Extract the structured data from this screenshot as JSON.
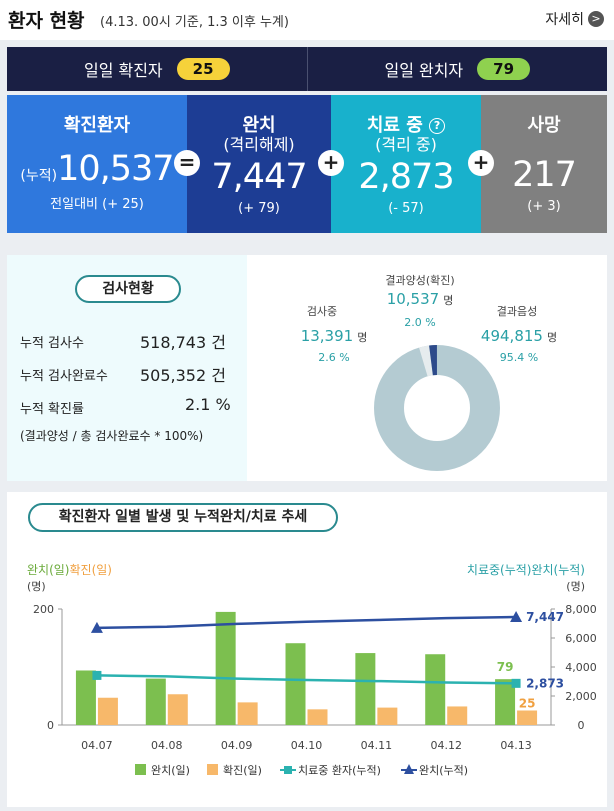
{
  "header": {
    "title": "환자 현황",
    "subtitle": "(4.13. 00시 기준, 1.3 이후 누계)",
    "more_label": "자세히",
    "more_arrow": ">"
  },
  "daily": {
    "confirmed_label": "일일 확진자",
    "confirmed_value": "25",
    "recovered_label": "일일 완치자",
    "recovered_value": "79"
  },
  "summary": {
    "confirmed": {
      "label": "확진환자",
      "prefix": "(누적)",
      "value": "10,537",
      "delta": "전일대비 (+ 25)"
    },
    "released": {
      "label": "완치",
      "label2": "(격리해제)",
      "value": "7,447",
      "delta": "(+ 79)"
    },
    "treatment": {
      "label": "치료 중",
      "label2": "(격리 중)",
      "value": "2,873",
      "delta": "(- 57)",
      "help": "?"
    },
    "deaths": {
      "label": "사망",
      "value": "217",
      "delta": "(+ 3)"
    },
    "op_equals": "=",
    "op_plus": "+",
    "colors": {
      "confirmed": "#2f78dd",
      "released": "#1d3d94",
      "treatment": "#18b1cc",
      "deaths": "#808080"
    }
  },
  "tests": {
    "title": "검사현황",
    "rows": [
      {
        "label": "누적 검사수",
        "value": "518,743 건"
      },
      {
        "label": "누적 검사완료수",
        "value": "505,352 건"
      },
      {
        "label": "누적 확진률",
        "value": "2.1 %"
      }
    ],
    "note": "(결과양성 / 총 검사완료수 * 100%)",
    "donut": {
      "positive": {
        "label": "결과양성(확진)",
        "value": "10,537",
        "unit": "명",
        "pct": "2.0 %",
        "fraction": 0.02
      },
      "testing": {
        "label": "검사중",
        "value": "13,391",
        "unit": "명",
        "pct": "2.6 %",
        "fraction": 0.026
      },
      "negative": {
        "label": "결과음성",
        "value": "494,815",
        "unit": "명",
        "pct": "95.4 %",
        "fraction": 0.954
      }
    }
  },
  "trend": {
    "title": "확진환자 일별 발생 및 누적완치/치료 추세",
    "left_axis_title": "완치(일)확진(일)",
    "left_axis_title_a": "완치(일)",
    "left_axis_title_b": "확진(일)",
    "left_unit": "(명)",
    "right_axis_title": "치료중(누적)완치(누적)",
    "right_unit": "(명)",
    "legend": [
      {
        "label": "완치(일)",
        "color": "#7cbf4f",
        "shape": "bar"
      },
      {
        "label": "확진(일)",
        "color": "#f7b86a",
        "shape": "bar"
      },
      {
        "label": "치료중 환자(누적)",
        "color": "#2bb2b0",
        "shape": "line-square"
      },
      {
        "label": "완치(누적)",
        "color": "#2d4fa0",
        "shape": "line-triangle"
      }
    ],
    "annotations": {
      "recovered_daily_last": "79",
      "confirmed_daily_last": "25",
      "treatment_cum_last": "2,873",
      "recovered_cum_last": "7,447"
    }
  },
  "chart_data": {
    "type": "bar",
    "title": "확진환자 일별 발생 및 누적완치/치료 추세",
    "categories": [
      "04.07",
      "04.08",
      "04.09",
      "04.10",
      "04.11",
      "04.12",
      "04.13"
    ],
    "y_left": {
      "ticks": [
        "0",
        "200"
      ],
      "range": [
        0,
        200
      ]
    },
    "y_right": {
      "ticks": [
        "0",
        "2,000",
        "4,000",
        "6,000",
        "8,000"
      ],
      "range": [
        0,
        8000
      ]
    },
    "series": [
      {
        "name": "완치(일)",
        "type": "bar",
        "axis": "left",
        "values": [
          94,
          80,
          195,
          141,
          124,
          122,
          79
        ]
      },
      {
        "name": "확진(일)",
        "type": "bar",
        "axis": "left",
        "values": [
          47,
          53,
          39,
          27,
          30,
          32,
          25
        ]
      },
      {
        "name": "치료중 환자(누적)",
        "type": "line",
        "axis": "right",
        "values": [
          3420,
          3350,
          3200,
          3100,
          3030,
          2930,
          2873
        ]
      },
      {
        "name": "완치(누적)",
        "type": "line",
        "axis": "right",
        "values": [
          6694,
          6776,
          6970,
          7117,
          7243,
          7368,
          7447
        ]
      }
    ]
  }
}
